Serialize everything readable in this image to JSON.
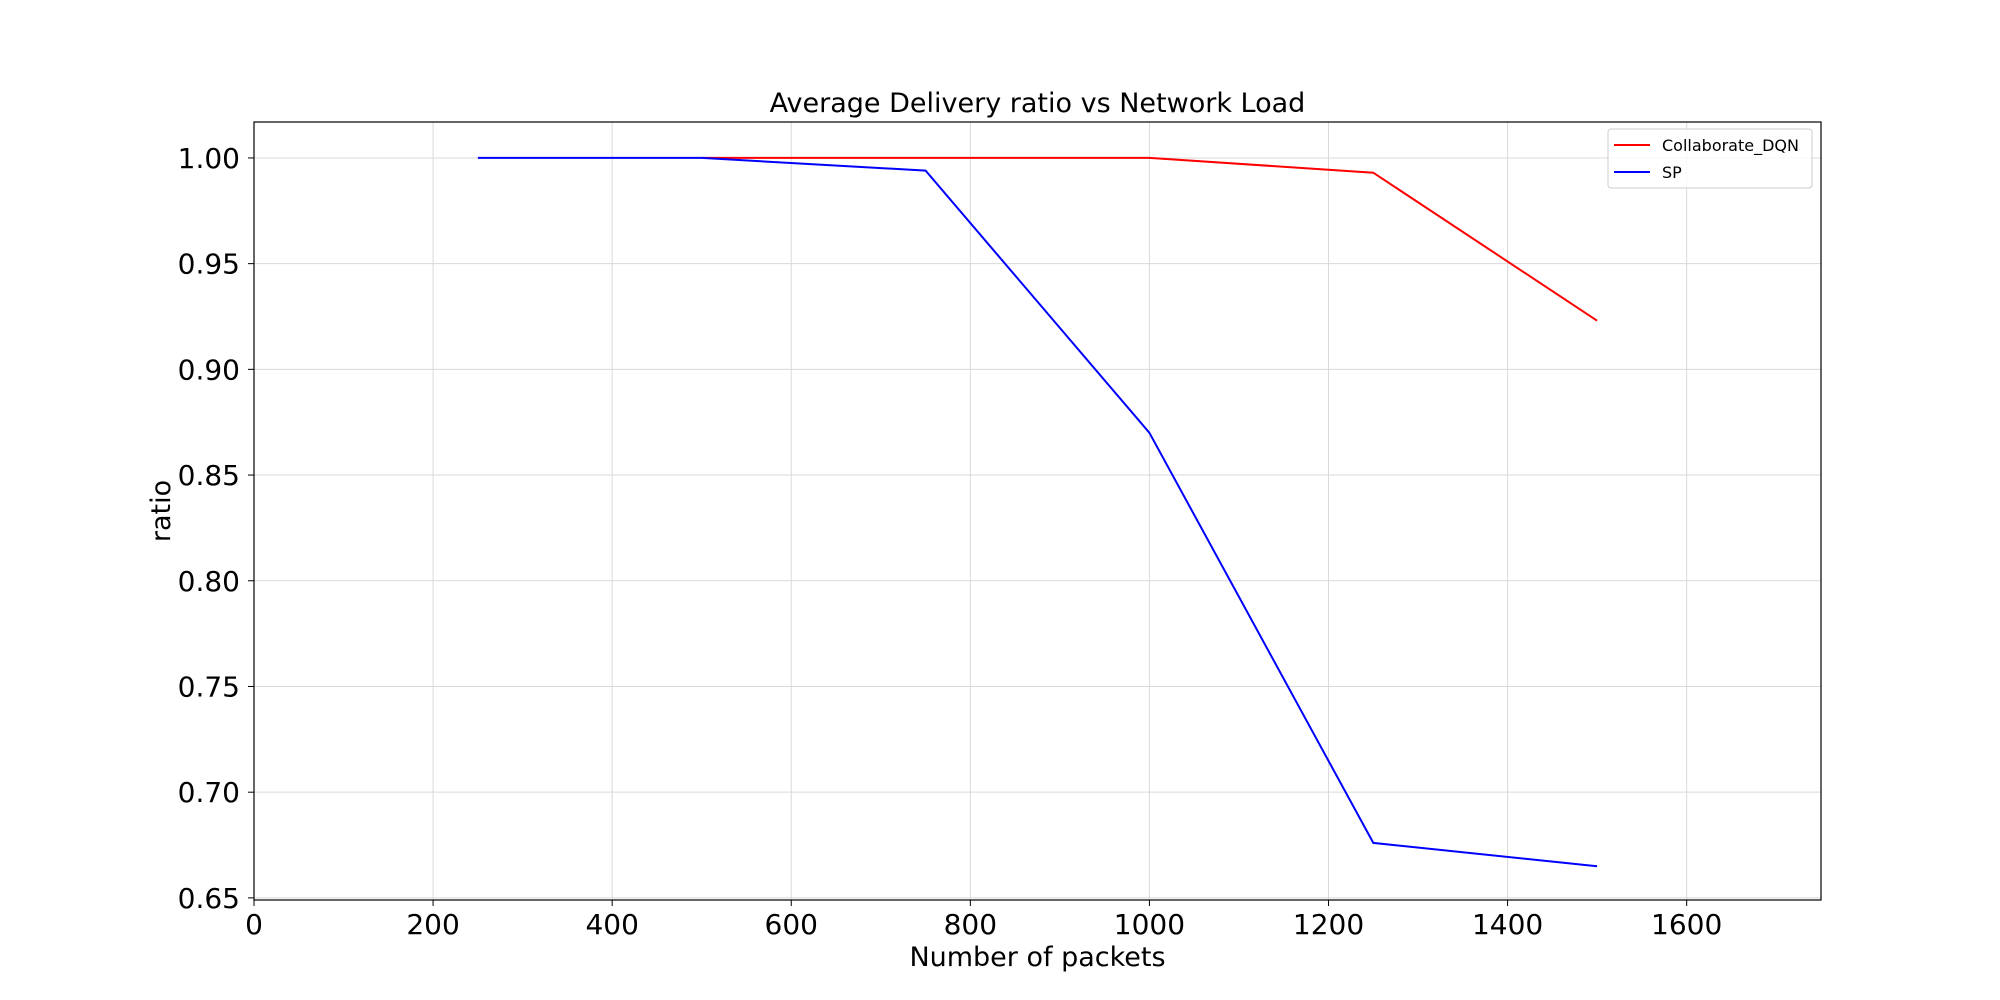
{
  "chart_data": {
    "type": "line",
    "title": "Average Delivery ratio vs Network Load",
    "xlabel": "Number of packets",
    "ylabel": "ratio",
    "xlim": [
      0,
      1750
    ],
    "ylim": [
      0.649,
      1.017
    ],
    "x_ticks": [
      0,
      200,
      400,
      600,
      800,
      1000,
      1200,
      1400,
      1600
    ],
    "x_tick_labels": [
      "0",
      "200",
      "400",
      "600",
      "800",
      "1000",
      "1200",
      "1400",
      "1600"
    ],
    "y_ticks": [
      0.65,
      0.7,
      0.75,
      0.8,
      0.85,
      0.9,
      0.95,
      1.0
    ],
    "y_tick_labels": [
      "0.65",
      "0.70",
      "0.75",
      "0.80",
      "0.85",
      "0.90",
      "0.95",
      "1.00"
    ],
    "grid": true,
    "legend_position": "top-right",
    "series": [
      {
        "name": "Collaborate_DQN",
        "color": "#ff0000",
        "x": [
          500,
          750,
          1000,
          1250,
          1500
        ],
        "y": [
          1.0,
          1.0,
          1.0,
          0.993,
          0.923
        ]
      },
      {
        "name": "SP",
        "color": "#0000ff",
        "x": [
          250,
          500,
          750,
          1000,
          1250,
          1500
        ],
        "y": [
          1.0,
          1.0,
          0.994,
          0.87,
          0.676,
          0.665
        ]
      }
    ]
  }
}
